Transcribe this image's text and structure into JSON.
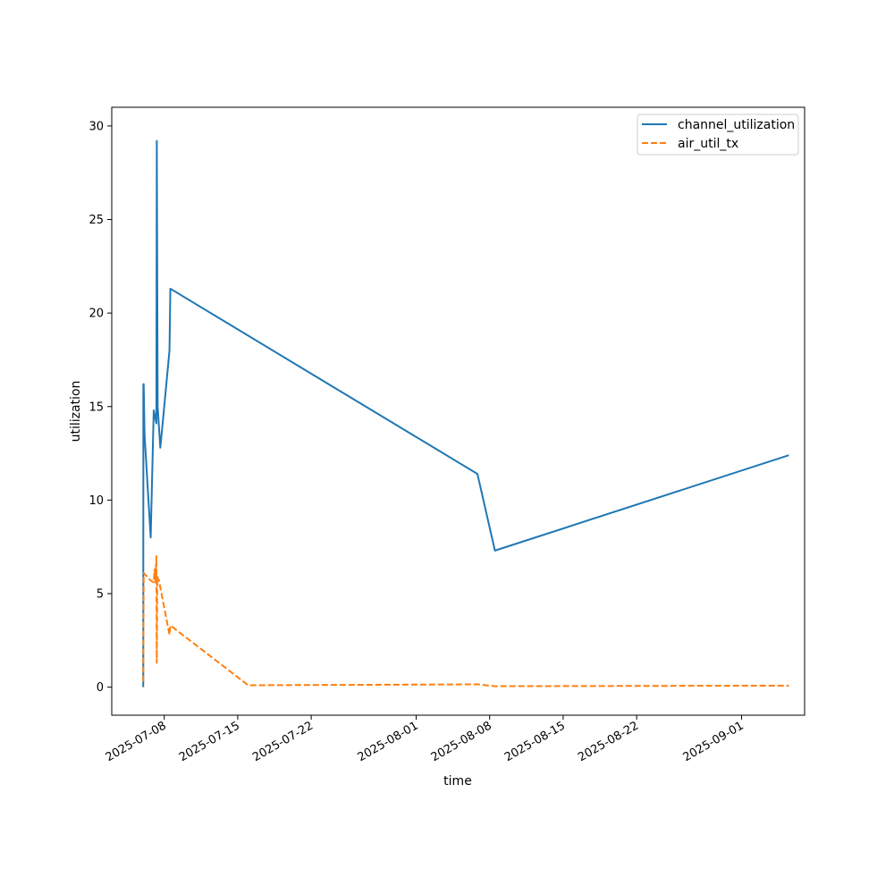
{
  "chart_data": {
    "type": "line",
    "xlabel": "time",
    "ylabel": "utilization",
    "xlim": [
      "2025-07-03",
      "2025-09-07"
    ],
    "ylim": [
      -1.5,
      31
    ],
    "x_ticks": [
      {
        "date": "2025-07-08",
        "label": "2025-07-08"
      },
      {
        "date": "2025-07-15",
        "label": "2025-07-15"
      },
      {
        "date": "2025-07-22",
        "label": "2025-07-22"
      },
      {
        "date": "2025-08-01",
        "label": "2025-08-01"
      },
      {
        "date": "2025-08-08",
        "label": "2025-08-08"
      },
      {
        "date": "2025-08-15",
        "label": "2025-08-15"
      },
      {
        "date": "2025-08-22",
        "label": "2025-08-22"
      },
      {
        "date": "2025-09-01",
        "label": "2025-09-01"
      }
    ],
    "y_ticks": [
      {
        "value": 0,
        "label": "0"
      },
      {
        "value": 5,
        "label": "5"
      },
      {
        "value": 10,
        "label": "10"
      },
      {
        "value": 15,
        "label": "15"
      },
      {
        "value": 20,
        "label": "20"
      },
      {
        "value": 25,
        "label": "25"
      },
      {
        "value": 30,
        "label": "30"
      }
    ],
    "grid": false,
    "legend_position": "top-right",
    "series": [
      {
        "name": "channel_utilization",
        "color": "#1f77b4",
        "style": "solid",
        "points": [
          [
            "2025-07-06T00:00",
            0.0
          ],
          [
            "2025-07-06T00:20",
            16.2
          ],
          [
            "2025-07-06T01:00",
            16.2
          ],
          [
            "2025-07-06T03:00",
            13.5
          ],
          [
            "2025-07-06T17:00",
            8.0
          ],
          [
            "2025-07-07T00:00",
            14.8
          ],
          [
            "2025-07-07T06:00",
            14.1
          ],
          [
            "2025-07-07T07:00",
            29.2
          ],
          [
            "2025-07-07T09:00",
            15.0
          ],
          [
            "2025-07-07T15:00",
            12.8
          ],
          [
            "2025-07-07T22:00",
            14.5
          ],
          [
            "2025-07-08T12:00",
            18.0
          ],
          [
            "2025-07-08T14:00",
            21.3
          ],
          [
            "2025-08-06T20:00",
            11.4
          ],
          [
            "2025-08-08T12:00",
            7.3
          ],
          [
            "2025-09-05T12:00",
            12.4
          ]
        ]
      },
      {
        "name": "air_util_tx",
        "color": "#ff7f0e",
        "style": "dashed",
        "points": [
          [
            "2025-07-06T00:00",
            0.3
          ],
          [
            "2025-07-06T01:00",
            6.1
          ],
          [
            "2025-07-06T17:00",
            5.7
          ],
          [
            "2025-07-07T00:00",
            5.6
          ],
          [
            "2025-07-07T02:00",
            6.3
          ],
          [
            "2025-07-07T04:00",
            5.6
          ],
          [
            "2025-07-07T06:00",
            7.0
          ],
          [
            "2025-07-07T07:00",
            1.3
          ],
          [
            "2025-07-07T08:00",
            5.9
          ],
          [
            "2025-07-07T12:00",
            5.7
          ],
          [
            "2025-07-08T12:00",
            2.8
          ],
          [
            "2025-07-08T14:00",
            3.3
          ],
          [
            "2025-07-16T00:00",
            0.1
          ],
          [
            "2025-08-06T20:00",
            0.15
          ],
          [
            "2025-08-08T12:00",
            0.05
          ],
          [
            "2025-09-05T12:00",
            0.08
          ]
        ]
      }
    ]
  }
}
